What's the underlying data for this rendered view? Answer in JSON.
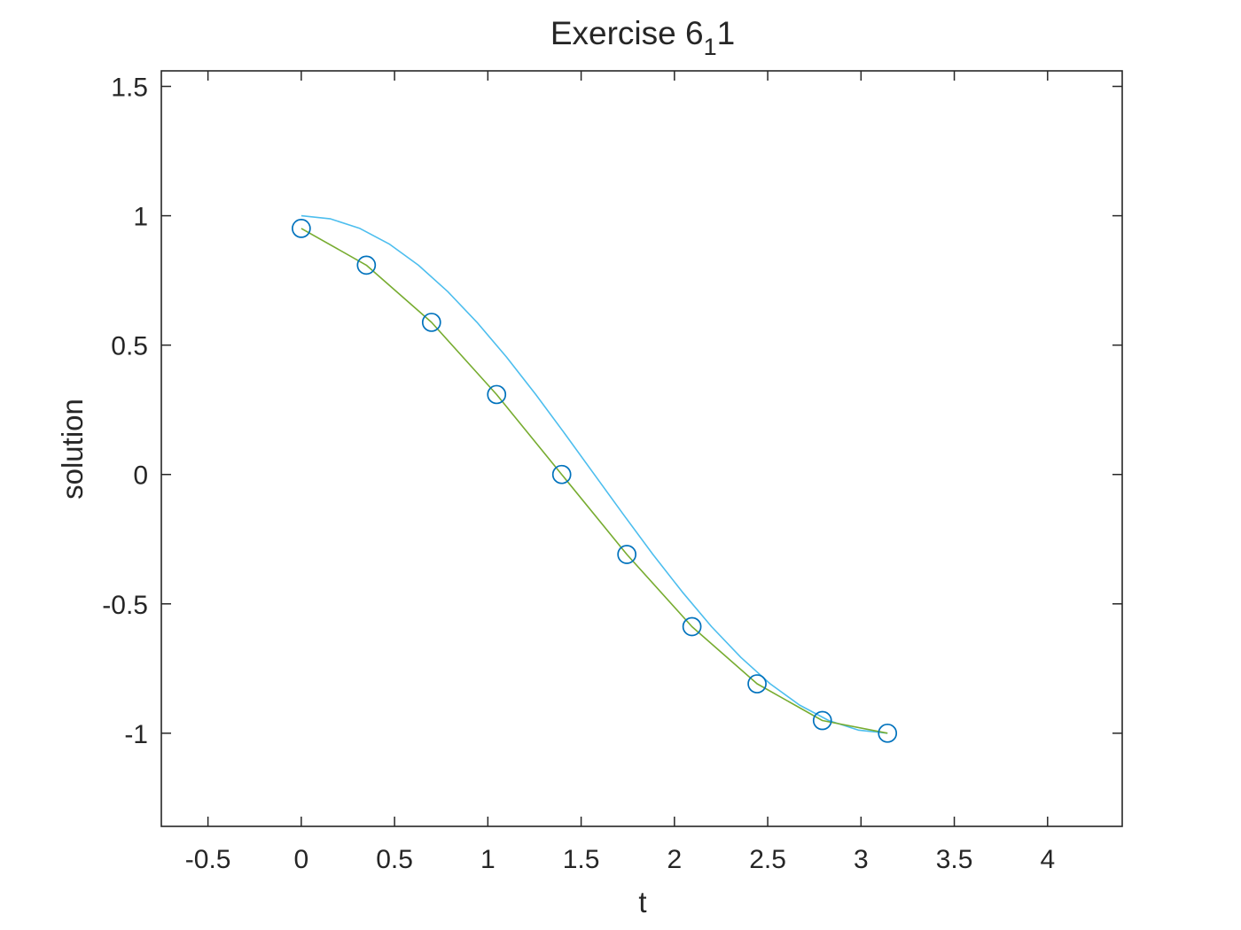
{
  "chart_data": {
    "type": "line",
    "title": {
      "main": "Exercise 6",
      "subscript": "1",
      "suffix": "1"
    },
    "xlabel": "t",
    "ylabel": "solution",
    "xlim": [
      -0.75,
      4.4
    ],
    "ylim": [
      -1.36,
      1.56
    ],
    "xticks": [
      -0.5,
      0,
      0.5,
      1,
      1.5,
      2,
      2.5,
      3,
      3.5,
      4
    ],
    "xtick_labels": [
      "-0.5",
      "0",
      "0.5",
      "1",
      "1.5",
      "2",
      "2.5",
      "3",
      "3.5",
      "4"
    ],
    "yticks": [
      -1,
      -0.5,
      0,
      0.5,
      1,
      1.5
    ],
    "ytick_labels": [
      "-1",
      "-0.5",
      "0",
      "0.5",
      "1",
      "1.5"
    ],
    "grid": false,
    "box": true,
    "series": [
      {
        "style": "markers",
        "marker": "circle",
        "color": "#0072BD",
        "x": [
          0,
          0.349,
          0.698,
          1.047,
          1.396,
          1.745,
          2.094,
          2.443,
          2.793,
          3.142
        ],
        "y": [
          0.951,
          0.809,
          0.588,
          0.309,
          0.0,
          -0.309,
          -0.588,
          -0.809,
          -0.951,
          -1.0
        ]
      },
      {
        "style": "line",
        "color": "#77AC30",
        "x": [
          0,
          0.349,
          0.698,
          1.047,
          1.396,
          1.745,
          2.094,
          2.443,
          2.793,
          3.142
        ],
        "y": [
          0.951,
          0.809,
          0.588,
          0.309,
          0.0,
          -0.309,
          -0.588,
          -0.809,
          -0.951,
          -1.0
        ]
      },
      {
        "style": "line",
        "color": "#4DBEEE",
        "x": [
          0,
          0.157,
          0.314,
          0.471,
          0.628,
          0.785,
          0.942,
          1.1,
          1.257,
          1.414,
          1.571,
          1.728,
          1.885,
          2.042,
          2.199,
          2.356,
          2.513,
          2.67,
          2.827,
          2.985,
          3.142
        ],
        "y": [
          1.0,
          0.988,
          0.951,
          0.891,
          0.809,
          0.707,
          0.588,
          0.454,
          0.309,
          0.156,
          0.0,
          -0.156,
          -0.309,
          -0.454,
          -0.588,
          -0.707,
          -0.809,
          -0.891,
          -0.951,
          -0.988,
          -1.0
        ]
      }
    ]
  }
}
